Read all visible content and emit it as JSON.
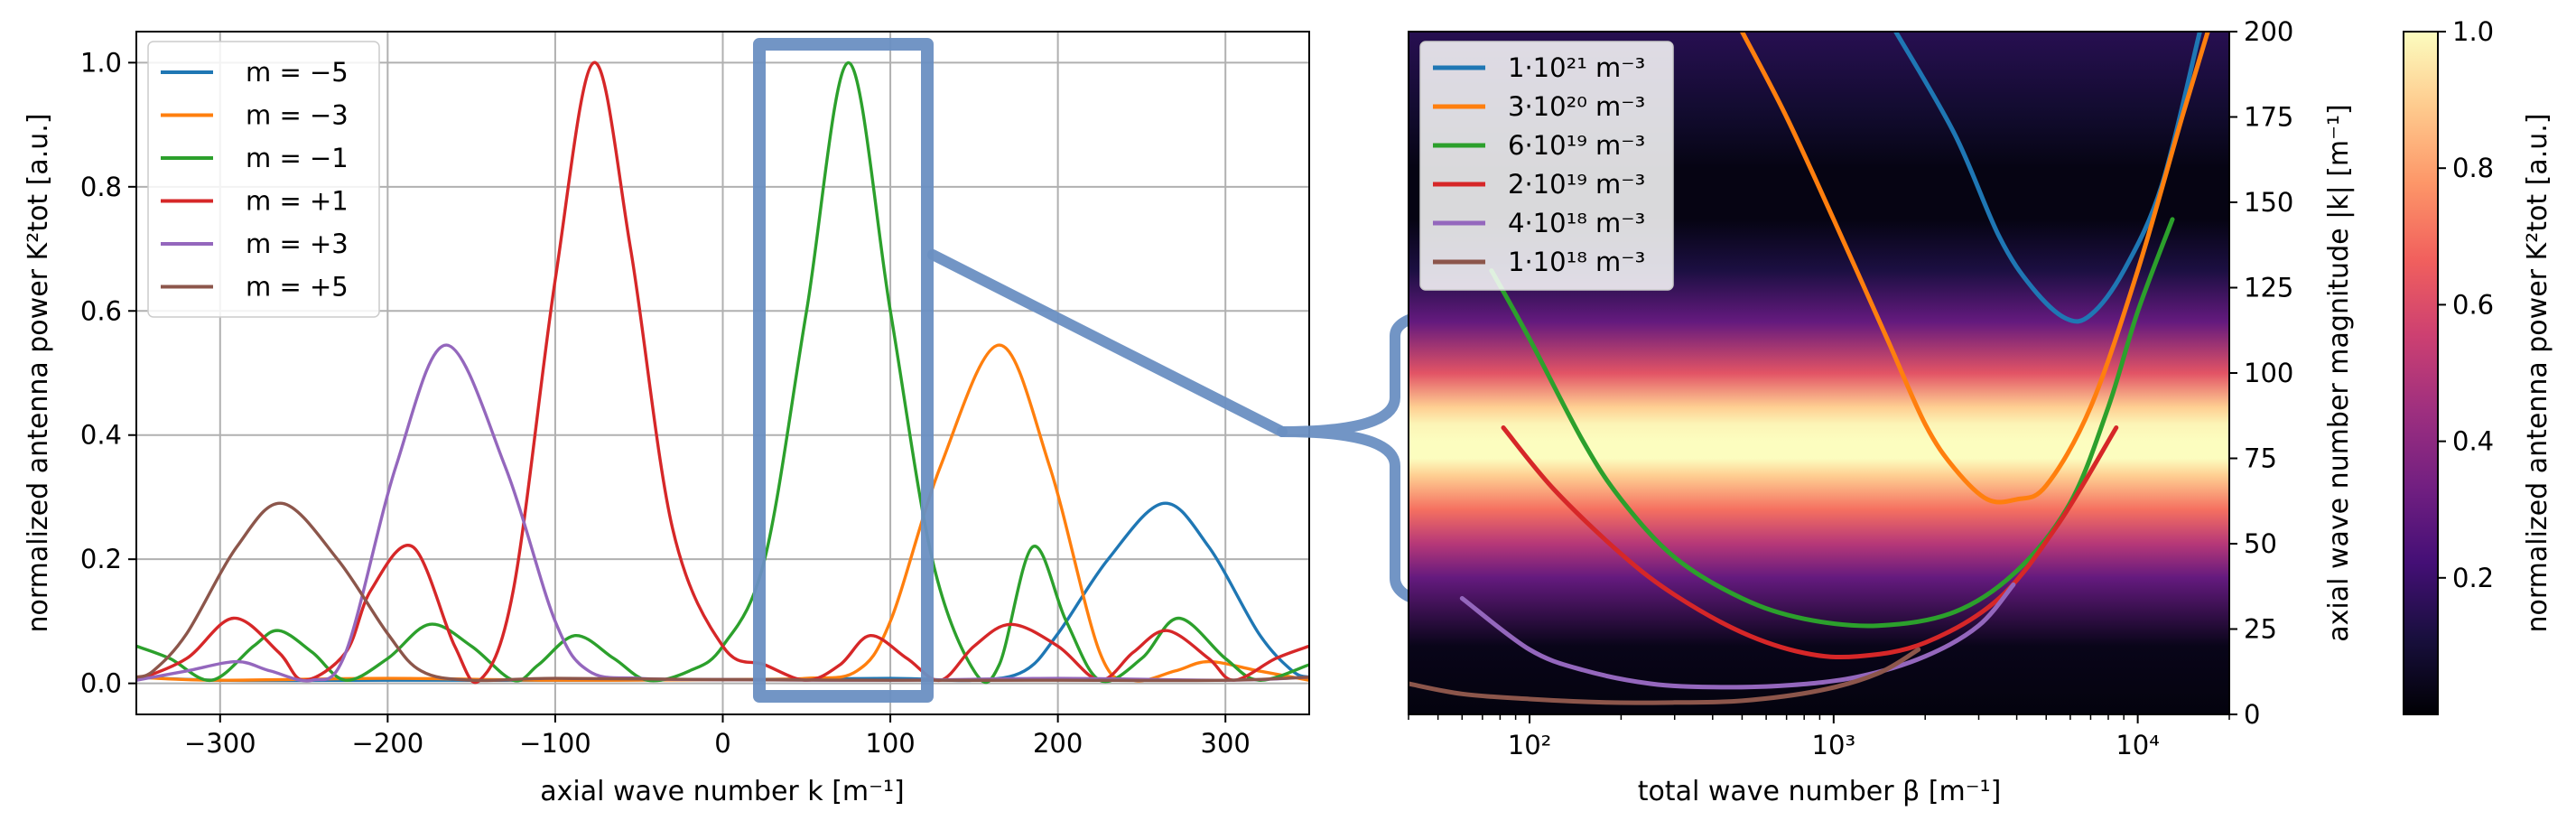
{
  "chart_data": [
    {
      "type": "line",
      "title": "",
      "xlabel": "axial wave number k [m⁻¹]",
      "ylabel": "normalized antenna power K²tot [a.u.]",
      "xlim": [
        -350,
        350
      ],
      "ylim": [
        -0.05,
        1.05
      ],
      "xticks": [
        "−300",
        "−200",
        "−100",
        "0",
        "100",
        "200",
        "300"
      ],
      "yticks": [
        "0.0",
        "0.2",
        "0.4",
        "0.6",
        "0.8",
        "1.0"
      ],
      "grid": true,
      "legend_position": "top-left",
      "series": [
        {
          "name": "m = −5",
          "color": "#1f77b4",
          "points": [
            [
              -350,
              0.01
            ],
            [
              -300,
              0.005
            ],
            [
              -200,
              0.005
            ],
            [
              -100,
              0.005
            ],
            [
              0,
              0.006
            ],
            [
              100,
              0.008
            ],
            [
              150,
              0.005
            ],
            [
              180,
              0.02
            ],
            [
              200,
              0.08
            ],
            [
              230,
              0.2
            ],
            [
              263,
              0.29
            ],
            [
              290,
              0.22
            ],
            [
              320,
              0.08
            ],
            [
              340,
              0.02
            ],
            [
              350,
              0.01
            ]
          ]
        },
        {
          "name": "m = −3",
          "color": "#ff7f0e",
          "points": [
            [
              -350,
              0.01
            ],
            [
              -300,
              0.005
            ],
            [
              -200,
              0.008
            ],
            [
              -100,
              0.005
            ],
            [
              0,
              0.006
            ],
            [
              50,
              0.008
            ],
            [
              80,
              0.02
            ],
            [
              100,
              0.1
            ],
            [
              130,
              0.35
            ],
            [
              165,
              0.545
            ],
            [
              195,
              0.35
            ],
            [
              225,
              0.05
            ],
            [
              245,
              0.005
            ],
            [
              270,
              0.02
            ],
            [
              290,
              0.035
            ],
            [
              320,
              0.02
            ],
            [
              350,
              0.005
            ]
          ]
        },
        {
          "name": "m = −1",
          "color": "#2ca02c",
          "points": [
            [
              -350,
              0.06
            ],
            [
              -330,
              0.04
            ],
            [
              -305,
              0.005
            ],
            [
              -280,
              0.06
            ],
            [
              -265,
              0.085
            ],
            [
              -245,
              0.05
            ],
            [
              -225,
              0.005
            ],
            [
              -200,
              0.04
            ],
            [
              -175,
              0.095
            ],
            [
              -150,
              0.06
            ],
            [
              -125,
              0.005
            ],
            [
              -110,
              0.03
            ],
            [
              -88,
              0.077
            ],
            [
              -65,
              0.04
            ],
            [
              -45,
              0.005
            ],
            [
              -20,
              0.02
            ],
            [
              0,
              0.06
            ],
            [
              25,
              0.2
            ],
            [
              50,
              0.6
            ],
            [
              75,
              1.0
            ],
            [
              100,
              0.6
            ],
            [
              125,
              0.2
            ],
            [
              150,
              0.02
            ],
            [
              165,
              0.03
            ],
            [
              185,
              0.22
            ],
            [
              205,
              0.1
            ],
            [
              225,
              0.005
            ],
            [
              250,
              0.04
            ],
            [
              272,
              0.105
            ],
            [
              300,
              0.04
            ],
            [
              320,
              0.005
            ],
            [
              350,
              0.03
            ]
          ]
        },
        {
          "name": "m = +1",
          "color": "#d62728",
          "points": [
            [
              -350,
              0.005
            ],
            [
              -320,
              0.04
            ],
            [
              -292,
              0.105
            ],
            [
              -265,
              0.05
            ],
            [
              -250,
              0.005
            ],
            [
              -225,
              0.05
            ],
            [
              -210,
              0.15
            ],
            [
              -185,
              0.22
            ],
            [
              -160,
              0.06
            ],
            [
              -145,
              0.005
            ],
            [
              -125,
              0.15
            ],
            [
              -100,
              0.65
            ],
            [
              -77,
              1.0
            ],
            [
              -55,
              0.7
            ],
            [
              -30,
              0.25
            ],
            [
              0,
              0.06
            ],
            [
              25,
              0.03
            ],
            [
              50,
              0.005
            ],
            [
              70,
              0.03
            ],
            [
              88,
              0.077
            ],
            [
              110,
              0.04
            ],
            [
              130,
              0.005
            ],
            [
              150,
              0.06
            ],
            [
              172,
              0.095
            ],
            [
              200,
              0.06
            ],
            [
              225,
              0.005
            ],
            [
              245,
              0.05
            ],
            [
              265,
              0.085
            ],
            [
              290,
              0.04
            ],
            [
              305,
              0.005
            ],
            [
              330,
              0.04
            ],
            [
              350,
              0.06
            ]
          ]
        },
        {
          "name": "m = +3",
          "color": "#9467bd",
          "points": [
            [
              -350,
              0.005
            ],
            [
              -320,
              0.02
            ],
            [
              -290,
              0.035
            ],
            [
              -270,
              0.02
            ],
            [
              -245,
              0.005
            ],
            [
              -225,
              0.05
            ],
            [
              -195,
              0.35
            ],
            [
              -165,
              0.545
            ],
            [
              -130,
              0.35
            ],
            [
              -100,
              0.1
            ],
            [
              -80,
              0.02
            ],
            [
              -50,
              0.008
            ],
            [
              0,
              0.006
            ],
            [
              100,
              0.005
            ],
            [
              200,
              0.008
            ],
            [
              300,
              0.005
            ],
            [
              350,
              0.01
            ]
          ]
        },
        {
          "name": "m = +5",
          "color": "#8c564b",
          "points": [
            [
              -350,
              0.01
            ],
            [
              -340,
              0.02
            ],
            [
              -320,
              0.08
            ],
            [
              -290,
              0.22
            ],
            [
              -263,
              0.29
            ],
            [
              -230,
              0.2
            ],
            [
              -200,
              0.08
            ],
            [
              -180,
              0.02
            ],
            [
              -150,
              0.005
            ],
            [
              -100,
              0.008
            ],
            [
              0,
              0.006
            ],
            [
              100,
              0.005
            ],
            [
              200,
              0.005
            ],
            [
              300,
              0.005
            ],
            [
              350,
              0.01
            ]
          ]
        }
      ]
    },
    {
      "type": "heatmap",
      "title": "",
      "xlabel": "total wave number β [m⁻¹]",
      "ylabel": "axial wave number magnitude |k| [m⁻¹]",
      "xscale": "log",
      "xlim": [
        40,
        20000
      ],
      "ylim": [
        0,
        200
      ],
      "xticks": [
        "10²",
        "10³",
        "10⁴"
      ],
      "yticks": [
        "0",
        "25",
        "50",
        "75",
        "100",
        "125",
        "150",
        "175",
        "200"
      ],
      "legend_position": "top-left",
      "heatmap_profile": {
        "k": [
          0,
          20,
          40,
          50,
          60,
          70,
          75,
          80,
          85,
          90,
          100,
          115,
          130,
          145,
          160,
          175,
          200
        ],
        "power": [
          0.02,
          0.04,
          0.3,
          0.5,
          0.7,
          0.9,
          1.0,
          1.0,
          0.98,
          0.9,
          0.62,
          0.3,
          0.12,
          0.03,
          0.03,
          0.08,
          0.15
        ]
      },
      "series": [
        {
          "name": "1·10²¹ m⁻³",
          "color": "#1f77b4",
          "points": [
            [
              1600,
              200
            ],
            [
              2500,
              170
            ],
            [
              3500,
              140
            ],
            [
              4500,
              125
            ],
            [
              5800,
              116
            ],
            [
              7000,
              117
            ],
            [
              9000,
              130
            ],
            [
              12000,
              155
            ],
            [
              16000,
              200
            ]
          ]
        },
        {
          "name": "3·10²⁰ m⁻³",
          "color": "#ff7f0e",
          "points": [
            [
              500,
              200
            ],
            [
              700,
              175
            ],
            [
              1000,
              145
            ],
            [
              1500,
              110
            ],
            [
              2000,
              85
            ],
            [
              2500,
              72
            ],
            [
              3200,
              63
            ],
            [
              4000,
              63
            ],
            [
              5000,
              67
            ],
            [
              7000,
              90
            ],
            [
              10000,
              130
            ],
            [
              14000,
              175
            ],
            [
              17000,
              200
            ]
          ]
        },
        {
          "name": "6·10¹⁹ m⁻³",
          "color": "#2ca02c",
          "points": [
            [
              75,
              130
            ],
            [
              100,
              110
            ],
            [
              150,
              80
            ],
            [
              200,
              63
            ],
            [
              300,
              46
            ],
            [
              500,
              34
            ],
            [
              800,
              28
            ],
            [
              1400,
              26
            ],
            [
              2500,
              30
            ],
            [
              4000,
              42
            ],
            [
              6000,
              62
            ],
            [
              8000,
              90
            ],
            [
              10000,
              118
            ],
            [
              13000,
              145
            ]
          ]
        },
        {
          "name": "2·10¹⁹ m⁻³",
          "color": "#d62728",
          "points": [
            [
              82,
              84
            ],
            [
              120,
              66
            ],
            [
              200,
              47
            ],
            [
              300,
              35
            ],
            [
              500,
              24
            ],
            [
              800,
              18
            ],
            [
              1200,
              17
            ],
            [
              2000,
              21
            ],
            [
              3500,
              34
            ],
            [
              5500,
              56
            ],
            [
              8500,
              84
            ]
          ]
        },
        {
          "name": "4·10¹⁸ m⁻³",
          "color": "#9467bd",
          "points": [
            [
              60,
              34
            ],
            [
              100,
              19
            ],
            [
              150,
              13
            ],
            [
              250,
              9
            ],
            [
              400,
              8
            ],
            [
              700,
              8.5
            ],
            [
              1200,
              11
            ],
            [
              2000,
              17
            ],
            [
              3000,
              26
            ],
            [
              3900,
              38
            ]
          ]
        },
        {
          "name": "1·10¹⁸ m⁻³",
          "color": "#8c564b",
          "points": [
            [
              40,
              9
            ],
            [
              60,
              6
            ],
            [
              100,
              4.5
            ],
            [
              180,
              3.5
            ],
            [
              300,
              3.5
            ],
            [
              500,
              4
            ],
            [
              900,
              7
            ],
            [
              1400,
              12
            ],
            [
              1900,
              19
            ]
          ]
        }
      ]
    },
    {
      "type": "colorbar",
      "ylabel": "normalized antenna power K²tot [a.u.]",
      "range": [
        0,
        1
      ],
      "ticks": [
        "0.2",
        "0.4",
        "0.6",
        "0.8",
        "1.0"
      ]
    }
  ],
  "colors": {
    "grid": "#b0b0b0",
    "zoom_box": "#6a8fc2",
    "cmap": [
      "#000004",
      "#180f3d",
      "#440f76",
      "#721f81",
      "#9e2f7f",
      "#cd4071",
      "#f1605d",
      "#fd9668",
      "#feca8d",
      "#fcfdbf"
    ]
  }
}
